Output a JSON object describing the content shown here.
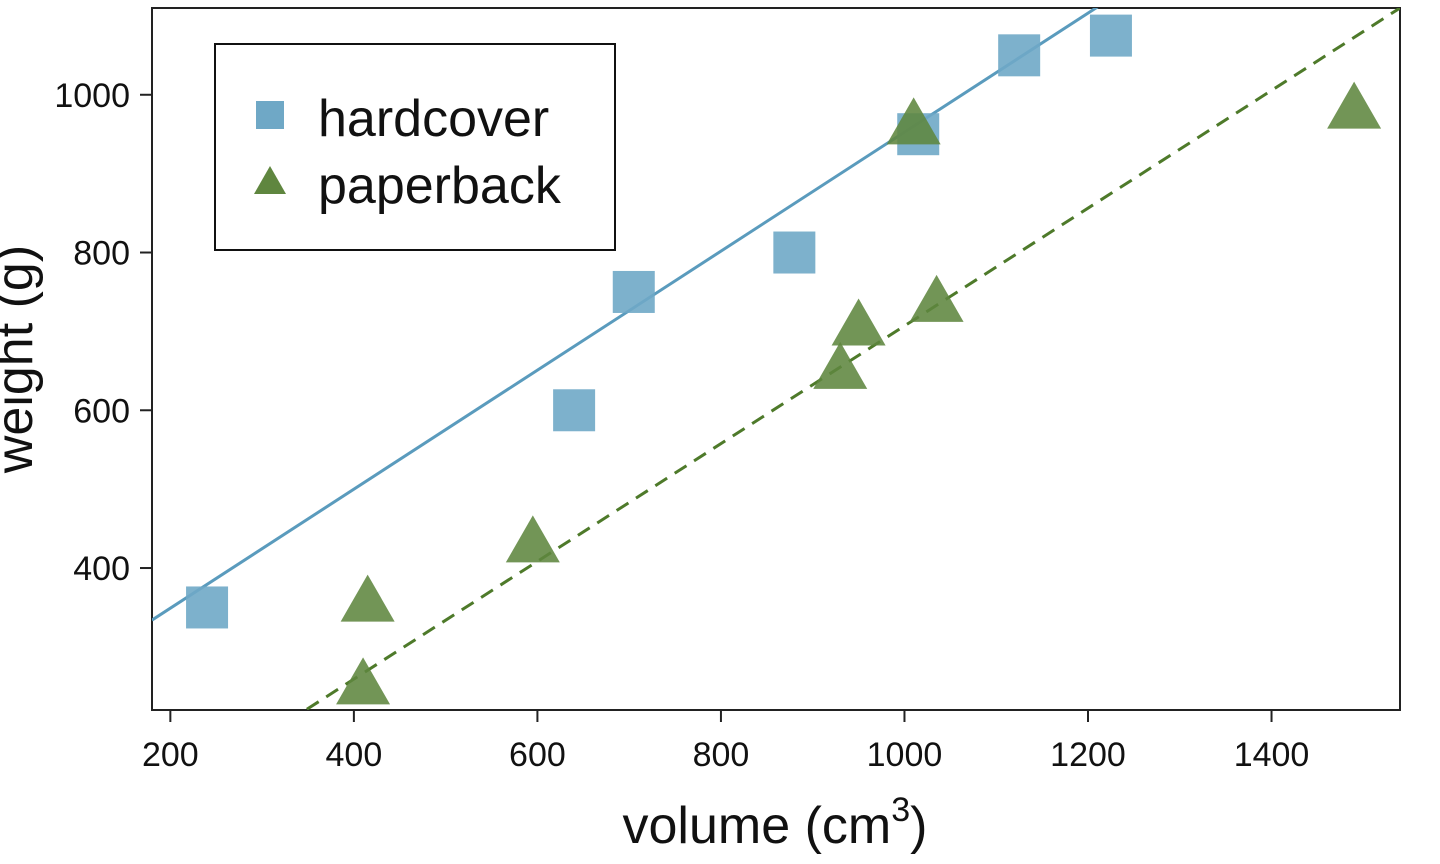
{
  "chart_data": {
    "type": "scatter",
    "title": "",
    "xlabel": "volume (cm",
    "xlabel_superscript": "3",
    "xlabel_close": ")",
    "ylabel": "weight (g)",
    "xlim": [
      180,
      1540
    ],
    "ylim": [
      220,
      1110
    ],
    "xticks": [
      200,
      400,
      600,
      800,
      1000,
      1200,
      1400
    ],
    "yticks": [
      400,
      600,
      800,
      1000
    ],
    "grid": false,
    "legend_position": "top-left",
    "series": [
      {
        "name": "hardcover",
        "marker": "square",
        "color": "#6fa8c6",
        "fit_color": "#5a9bbd",
        "fit_style": "solid",
        "points": [
          [
            240,
            350
          ],
          [
            640,
            600
          ],
          [
            705,
            750
          ],
          [
            880,
            800
          ],
          [
            1015,
            950
          ],
          [
            1125,
            1050
          ],
          [
            1225,
            1075
          ]
        ],
        "fit": [
          [
            180,
            334
          ],
          [
            1540,
            1360
          ]
        ]
      },
      {
        "name": "paperback",
        "marker": "triangle",
        "color": "#5f863f",
        "fit_color": "#4e7a2a",
        "fit_style": "dashed",
        "points": [
          [
            415,
            360
          ],
          [
            410,
            255
          ],
          [
            595,
            435
          ],
          [
            930,
            655
          ],
          [
            950,
            710
          ],
          [
            1035,
            740
          ],
          [
            1010,
            965
          ],
          [
            1490,
            985
          ]
        ],
        "fit": [
          [
            180,
            95
          ],
          [
            1540,
            1110
          ]
        ]
      }
    ]
  }
}
